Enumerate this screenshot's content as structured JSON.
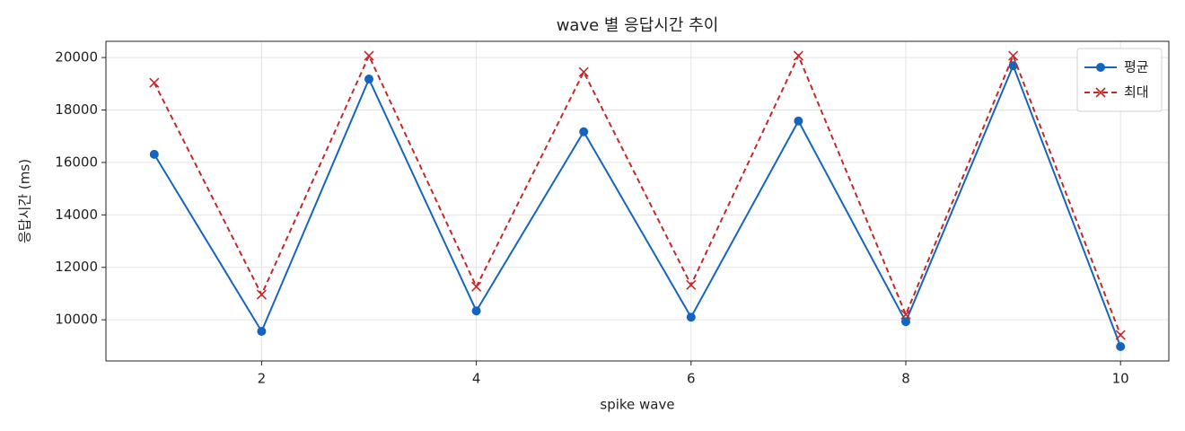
{
  "chart_data": {
    "type": "line",
    "title": "wave 별 응답시간 추이",
    "x_label": "spike wave",
    "y_label": "응답시간 (ms)",
    "x": [
      1,
      2,
      3,
      4,
      5,
      6,
      7,
      8,
      9,
      10
    ],
    "series": [
      {
        "name": "평균",
        "color": "#1565c0",
        "marker": "o",
        "linestyle": "solid",
        "values": [
          16310,
          9560,
          19180,
          10340,
          17170,
          10100,
          17580,
          9930,
          19690,
          8980
        ]
      },
      {
        "name": "최대",
        "color": "#c62828",
        "marker": "x",
        "linestyle": "dashed",
        "values": [
          19040,
          10960,
          20070,
          11260,
          19450,
          11330,
          20070,
          10200,
          20070,
          9420
        ]
      }
    ],
    "xlim": [
      0.55,
      10.45
    ],
    "xticks": [
      2,
      4,
      6,
      8,
      10
    ],
    "ylim": [
      8430,
      20620
    ],
    "yticks": [
      10000,
      12000,
      14000,
      16000,
      18000,
      20000
    ],
    "grid": true,
    "legend": "upper right"
  }
}
